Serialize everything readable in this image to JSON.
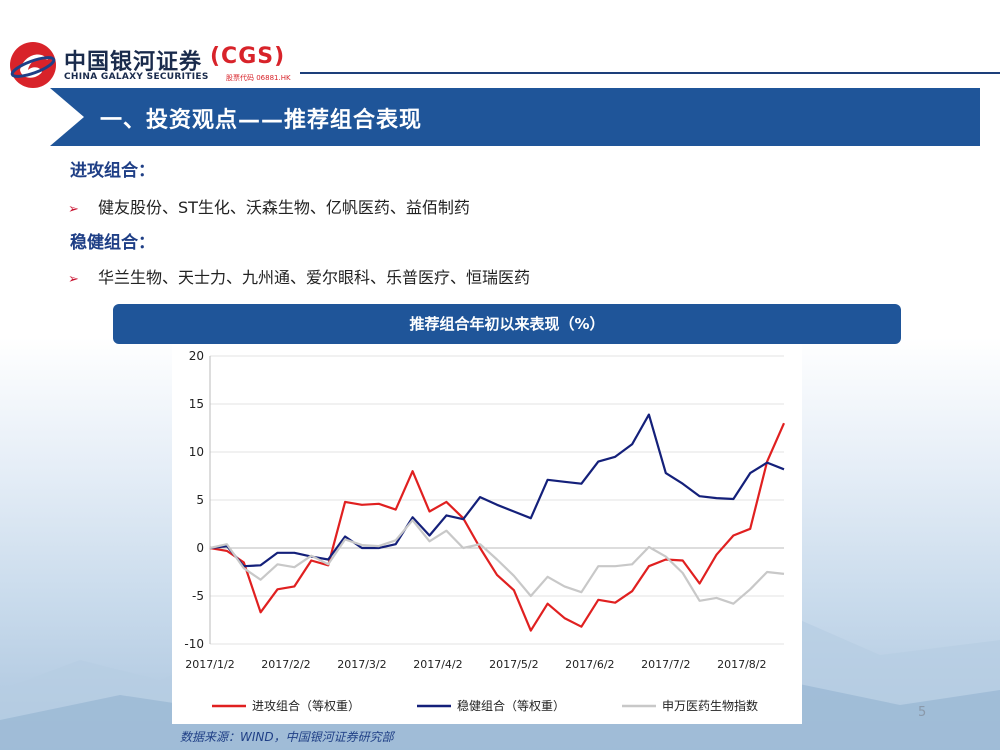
{
  "header": {
    "brand_cn": "中国银河证券",
    "brand_en": "CHINA GALAXY SECURITIES",
    "brand_code": "(CGS)",
    "stock_code": "股票代码 06881.HK",
    "title": "一、投资观点——推荐组合表现"
  },
  "sections": [
    {
      "heading": "进攻组合：",
      "items": "健友股份、ST生化、沃森生物、亿帆医药、益佰制药"
    },
    {
      "heading": "稳健组合：",
      "items": "华兰生物、天士力、九州通、爱尔眼科、乐普医疗、恒瑞医药"
    }
  ],
  "chart_header": "推荐组合年初以来表现（%）",
  "source": "数据来源：WIND，中国银河证券研究部",
  "page_number": "5",
  "colors": {
    "brand_blue": "#1f5599",
    "red": "#e02020",
    "navy": "#14207a",
    "gray": "#c8c8c8"
  },
  "chart_data": {
    "type": "line",
    "ylim": [
      -10,
      20
    ],
    "yticks": [
      "-10",
      "-5",
      "0",
      "5",
      "10",
      "15",
      "20"
    ],
    "xlabels": [
      "2017/1/2",
      "2017/2/2",
      "2017/3/2",
      "2017/4/2",
      "2017/5/2",
      "2017/6/2",
      "2017/7/2",
      "2017/8/2"
    ],
    "grid": "horizontal",
    "legend": "bottom",
    "series": [
      {
        "name": "进攻组合（等权重）",
        "color": "#e02020",
        "values": [
          0,
          -0.3,
          -1.5,
          -6.7,
          -4.3,
          -4.0,
          -1.3,
          -1.8,
          4.8,
          4.5,
          4.6,
          4.0,
          8.0,
          3.8,
          4.8,
          3.1,
          0.0,
          -2.8,
          -4.4,
          -8.6,
          -5.8,
          -7.3,
          -8.2,
          -5.4,
          -5.7,
          -4.5,
          -1.9,
          -1.2,
          -1.3,
          -3.7,
          -0.7,
          1.3,
          2.0,
          9.0,
          13.0
        ]
      },
      {
        "name": "稳健组合（等权重）",
        "color": "#14207a",
        "values": [
          0,
          0.2,
          -1.9,
          -1.8,
          -0.5,
          -0.5,
          -0.9,
          -1.2,
          1.2,
          0.0,
          0.0,
          0.4,
          3.2,
          1.3,
          3.4,
          3.0,
          5.3,
          4.5,
          3.8,
          3.1,
          7.1,
          6.9,
          6.7,
          9.0,
          9.5,
          10.8,
          13.9,
          7.8,
          6.7,
          5.4,
          5.2,
          5.1,
          7.8,
          8.9,
          8.2
        ]
      },
      {
        "name": "申万医药生物指数",
        "color": "#c8c8c8",
        "values": [
          0,
          0.4,
          -2.1,
          -3.3,
          -1.7,
          -2.0,
          -0.8,
          -1.7,
          0.9,
          0.3,
          0.2,
          0.8,
          2.9,
          0.7,
          1.8,
          0.0,
          0.4,
          -1.2,
          -2.9,
          -5.0,
          -3.0,
          -4.0,
          -4.6,
          -1.9,
          -1.9,
          -1.7,
          0.1,
          -0.9,
          -2.6,
          -5.5,
          -5.2,
          -5.8,
          -4.3,
          -2.5,
          -2.7
        ]
      }
    ]
  }
}
